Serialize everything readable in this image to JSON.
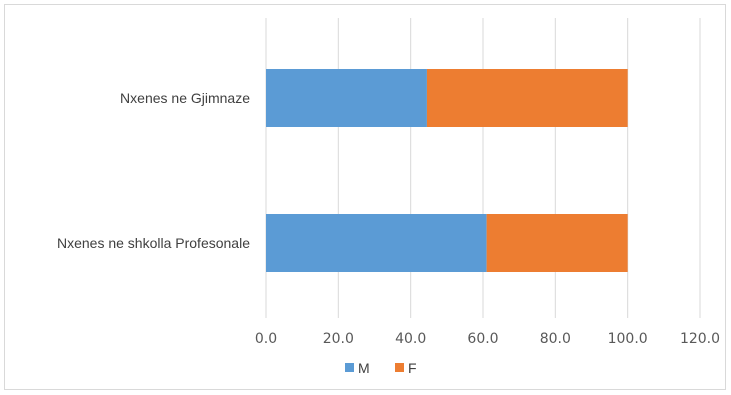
{
  "chart_data": {
    "type": "bar",
    "orientation": "horizontal",
    "stacked": true,
    "categories": [
      "Nxenes ne shkolla Profesonale",
      "Nxenes ne Gjimnaze"
    ],
    "series": [
      {
        "name": "M",
        "values": [
          61.0,
          44.5
        ],
        "color": "#5b9bd5"
      },
      {
        "name": "F",
        "values": [
          39.0,
          55.5
        ],
        "color": "#ed7d31"
      }
    ],
    "xlim": [
      0,
      120
    ],
    "x_ticks": [
      0,
      20,
      40,
      60,
      80,
      100,
      120
    ],
    "x_tick_labels": [
      "0.0",
      "20.0",
      "40.0",
      "60.0",
      "80.0",
      "100.0",
      "120.0"
    ],
    "grid": true,
    "legend_position": "bottom"
  }
}
